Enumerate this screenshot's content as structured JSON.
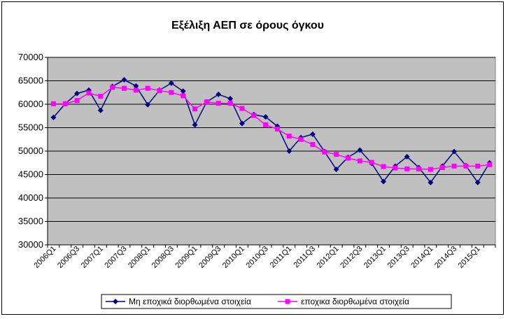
{
  "chart_data": {
    "type": "line",
    "title": "Εξέλιξη ΑΕΠ σε όρους όγκου",
    "xlabel": "",
    "ylabel": "",
    "ylim": [
      30000,
      70000
    ],
    "yticks": [
      30000,
      35000,
      40000,
      45000,
      50000,
      55000,
      60000,
      65000,
      70000
    ],
    "x": [
      "2006Q1",
      "2006Q2",
      "2006Q3",
      "2006Q4",
      "2007Q1",
      "2007Q2",
      "2007Q3",
      "2007Q4",
      "2008Q1",
      "2008Q2",
      "2008Q3",
      "2008Q4",
      "2009Q1",
      "2009Q2",
      "2009Q3",
      "2009Q4",
      "2010Q1",
      "2010Q2",
      "2010Q3",
      "2010Q4",
      "2011Q1",
      "2011Q2",
      "2011Q3",
      "2011Q4",
      "2012Q1",
      "2012Q2",
      "2012Q3",
      "2012Q4",
      "2013Q1",
      "2013Q2",
      "2013Q3",
      "2013Q4",
      "2014Q1",
      "2014Q2",
      "2014Q3",
      "2014Q4",
      "2015Q1",
      "2015Q2"
    ],
    "x_tick_labels": [
      "2006Q1",
      "2006Q3",
      "2007Q1",
      "2007Q3",
      "2008Q1",
      "2008Q3",
      "2009Q1",
      "2009Q3",
      "2010Q1",
      "2010Q3",
      "2011Q1",
      "2011Q3",
      "2012Q1",
      "2012Q3",
      "2013Q1",
      "2013Q3",
      "2014Q1",
      "2014Q3",
      "2015Q1"
    ],
    "grid": "horizontal",
    "plot_background": "#c0c0c0",
    "legend_position": "bottom",
    "series": [
      {
        "name": "Μη εποχικά διορθωμένα στοιχεία",
        "color": "#000080",
        "marker": "diamond",
        "values": [
          57200,
          60100,
          62300,
          63000,
          58700,
          63800,
          65200,
          63900,
          59900,
          63000,
          64500,
          62800,
          55600,
          60500,
          62100,
          61200,
          55900,
          57800,
          57300,
          55300,
          50000,
          52900,
          53600,
          49900,
          46100,
          48700,
          50200,
          47400,
          43500,
          46800,
          48800,
          46500,
          43300,
          46800,
          49900,
          46900,
          43300,
          47500
        ]
      },
      {
        "name": "εποχικα διορθωμένα στοιχεία",
        "color": "#ff00ff",
        "marker": "square",
        "values": [
          60100,
          60100,
          60800,
          62400,
          61700,
          63600,
          63400,
          63000,
          63400,
          62900,
          62500,
          61800,
          59000,
          60500,
          60200,
          60200,
          59100,
          57600,
          55600,
          54700,
          53200,
          52500,
          51400,
          49800,
          49300,
          48500,
          47900,
          47600,
          46700,
          46400,
          46200,
          46200,
          46100,
          46500,
          46800,
          46800,
          46800,
          47100
        ]
      }
    ]
  }
}
